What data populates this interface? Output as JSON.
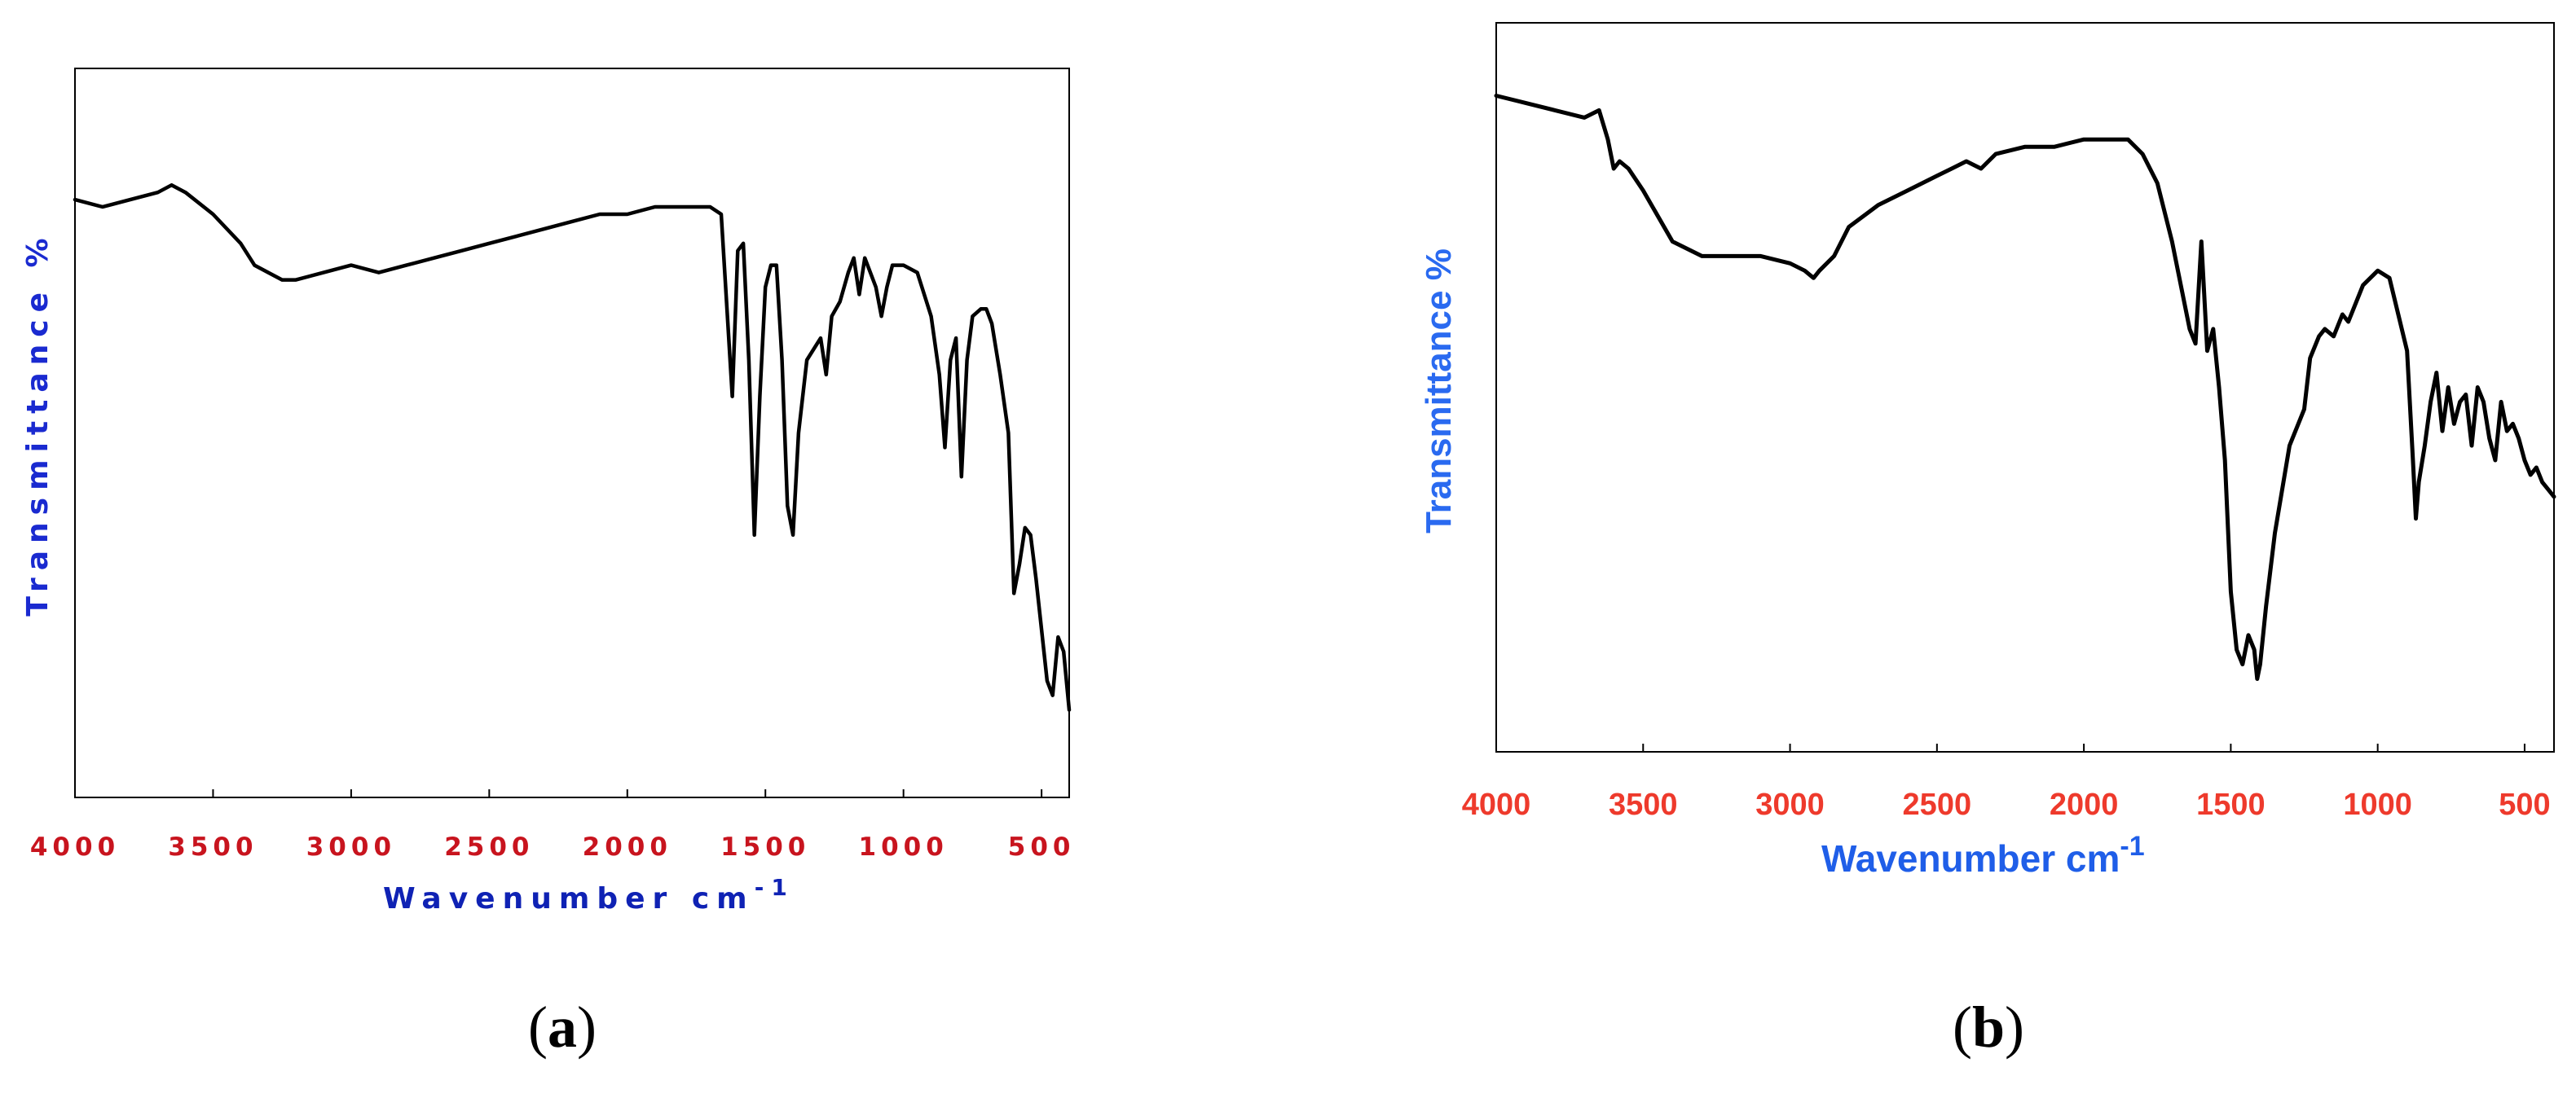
{
  "figure": {
    "panels": [
      {
        "caption_letter": "a"
      },
      {
        "caption_letter": "b"
      }
    ]
  },
  "chart_data": [
    {
      "type": "line",
      "panel": "a",
      "xlabel_main": "Wavenumber cm",
      "xlabel_sup": "-1",
      "ylabel": "Transmittance %",
      "xlim": [
        4000,
        400
      ],
      "ylim": [
        0,
        100
      ],
      "x_reversed": true,
      "grid": false,
      "tick_labels": [
        "4000",
        "3500",
        "3000",
        "2500",
        "2000",
        "1500",
        "1000",
        "500"
      ],
      "tick_values": [
        4000,
        3500,
        3000,
        2500,
        2000,
        1500,
        1000,
        500
      ],
      "series": [
        {
          "color": "#000000",
          "x": [
            4000,
            3900,
            3800,
            3700,
            3650,
            3600,
            3500,
            3400,
            3350,
            3300,
            3250,
            3200,
            3100,
            3000,
            2900,
            2800,
            2700,
            2600,
            2500,
            2400,
            2300,
            2200,
            2100,
            2000,
            1900,
            1800,
            1700,
            1660,
            1620,
            1600,
            1580,
            1560,
            1540,
            1520,
            1500,
            1480,
            1460,
            1440,
            1420,
            1400,
            1380,
            1350,
            1300,
            1280,
            1260,
            1230,
            1200,
            1180,
            1160,
            1140,
            1120,
            1100,
            1080,
            1060,
            1040,
            1000,
            950,
            900,
            870,
            850,
            830,
            810,
            790,
            770,
            750,
            720,
            700,
            680,
            650,
            620,
            600,
            580,
            560,
            540,
            520,
            500,
            480,
            460,
            440,
            420,
            400
          ],
          "y": [
            82,
            81,
            82,
            83,
            84,
            83,
            80,
            76,
            73,
            72,
            71,
            71,
            72,
            73,
            72,
            73,
            74,
            75,
            76,
            77,
            78,
            79,
            80,
            80,
            81,
            81,
            81,
            80,
            55,
            75,
            76,
            60,
            36,
            55,
            70,
            73,
            73,
            60,
            40,
            36,
            50,
            60,
            63,
            58,
            66,
            68,
            72,
            74,
            69,
            74,
            72,
            70,
            66,
            70,
            73,
            73,
            72,
            66,
            58,
            48,
            60,
            63,
            44,
            60,
            66,
            67,
            67,
            65,
            58,
            50,
            28,
            32,
            37,
            36,
            30,
            23,
            16,
            14,
            22,
            20,
            12
          ]
        }
      ]
    },
    {
      "type": "line",
      "panel": "b",
      "xlabel_main": "Wavenumber cm",
      "xlabel_sup": "-1",
      "ylabel": "Transmittance %",
      "xlim": [
        4000,
        400
      ],
      "ylim": [
        0,
        100
      ],
      "x_reversed": true,
      "grid": false,
      "tick_labels": [
        "4000",
        "3500",
        "3000",
        "2500",
        "2000",
        "1500",
        "1000",
        "500"
      ],
      "tick_values": [
        4000,
        3500,
        3000,
        2500,
        2000,
        1500,
        1000,
        500
      ],
      "series": [
        {
          "color": "#000000",
          "x": [
            4000,
            3900,
            3800,
            3700,
            3650,
            3620,
            3600,
            3580,
            3550,
            3500,
            3400,
            3300,
            3200,
            3100,
            3000,
            2950,
            2920,
            2900,
            2850,
            2800,
            2700,
            2600,
            2500,
            2450,
            2400,
            2350,
            2300,
            2200,
            2100,
            2000,
            1900,
            1850,
            1800,
            1750,
            1700,
            1660,
            1640,
            1620,
            1600,
            1580,
            1560,
            1540,
            1520,
            1500,
            1480,
            1460,
            1440,
            1420,
            1410,
            1400,
            1380,
            1350,
            1300,
            1250,
            1230,
            1200,
            1180,
            1150,
            1120,
            1100,
            1050,
            1000,
            960,
            930,
            900,
            880,
            870,
            860,
            840,
            820,
            800,
            780,
            760,
            740,
            720,
            700,
            680,
            660,
            640,
            620,
            600,
            580,
            560,
            540,
            520,
            500,
            480,
            460,
            440,
            420,
            400
          ],
          "y": [
            90,
            89,
            88,
            87,
            88,
            84,
            80,
            81,
            80,
            77,
            70,
            68,
            68,
            68,
            67,
            66,
            65,
            66,
            68,
            72,
            75,
            77,
            79,
            80,
            81,
            80,
            82,
            83,
            83,
            84,
            84,
            84,
            82,
            78,
            70,
            62,
            58,
            56,
            70,
            55,
            58,
            50,
            40,
            22,
            14,
            12,
            16,
            14,
            10,
            12,
            20,
            30,
            42,
            47,
            54,
            57,
            58,
            57,
            60,
            59,
            64,
            66,
            65,
            60,
            55,
            40,
            32,
            37,
            42,
            48,
            52,
            44,
            50,
            45,
            48,
            49,
            42,
            50,
            48,
            43,
            40,
            48,
            44,
            45,
            43,
            40,
            38,
            39,
            37,
            36,
            35
          ]
        }
      ]
    }
  ]
}
